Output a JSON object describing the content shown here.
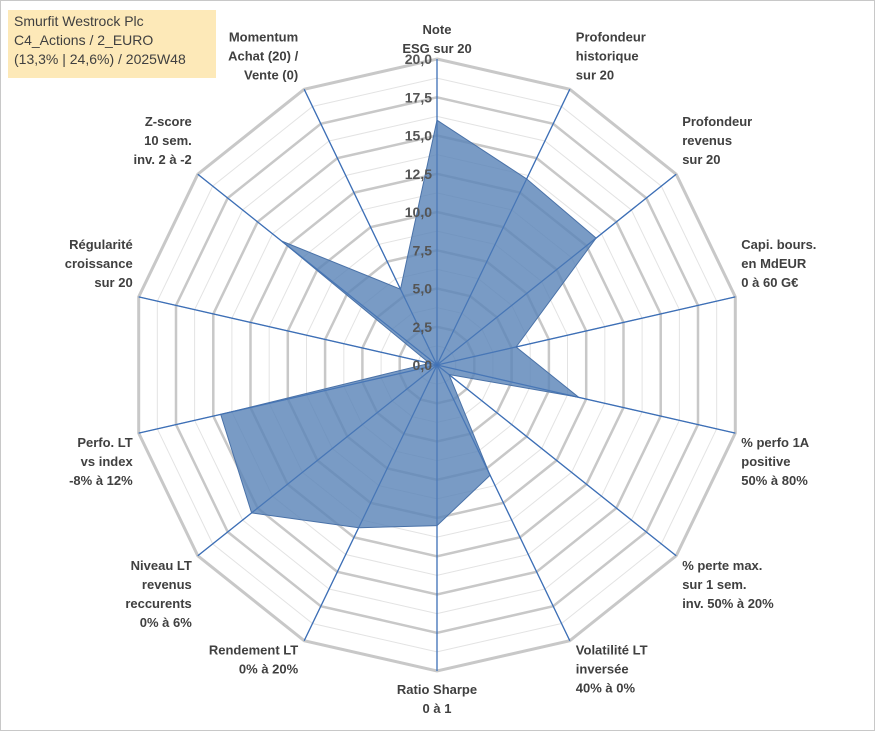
{
  "title_lines": [
    "Smurfit Westrock Plc",
    "C4_Actions / 2_EURO",
    "(13,3% | 24,6%) / 2025W48"
  ],
  "colors": {
    "title_bg": "#fde9b8",
    "grid": "#c8c8c8",
    "grid_minor": "#e3e3e3",
    "spoke": "#3d6fb6",
    "fill": "#5b85b8",
    "stroke": "#4a72a8"
  },
  "chart_data": {
    "type": "radar",
    "r_range": [
      0,
      20
    ],
    "ticks": [
      "0,0",
      "2,5",
      "5,0",
      "7,5",
      "10,0",
      "12,5",
      "15,0",
      "17,5",
      "20,0"
    ],
    "axes": [
      {
        "label": [
          "Note",
          "ESG sur 20"
        ],
        "value": 16.0
      },
      {
        "label": [
          "Profondeur",
          "historique",
          "sur 20"
        ],
        "value": 13.5
      },
      {
        "label": [
          "Profondeur",
          "revenus",
          "sur 20"
        ],
        "value": 13.3
      },
      {
        "label": [
          "Capi. bours.",
          "en MdEUR",
          "0 à 60 G€"
        ],
        "value": 5.3
      },
      {
        "label": [
          "% perfo 1A",
          "positive",
          "50% à 80%"
        ],
        "value": 9.5
      },
      {
        "label": [
          "% perte max.",
          "sur 1 sem.",
          "inv. 50% à 20%"
        ],
        "value": 1.0
      },
      {
        "label": [
          "Volatilité LT",
          "inversée",
          "40% à 0%"
        ],
        "value": 8.0
      },
      {
        "label": [
          "Ratio Sharpe",
          "0 à 1"
        ],
        "value": 10.5
      },
      {
        "label": [
          "Rendement LT",
          "0% à 20%"
        ],
        "value": 11.8
      },
      {
        "label": [
          "Niveau LT",
          "revenus",
          "reccurents",
          "0% à 6%"
        ],
        "value": 15.5
      },
      {
        "label": [
          "Perfo. LT",
          "vs index",
          "-8% à 12%"
        ],
        "value": 14.5
      },
      {
        "label": [
          "Régularité",
          "croissance",
          "sur 20"
        ],
        "value": 0.5
      },
      {
        "label": [
          "Z-score",
          "10 sem.",
          "inv. 2 à -2"
        ],
        "value": 13.0
      },
      {
        "label": [
          "Momentum",
          "Achat (20) /",
          "Vente (0)"
        ],
        "value": 5.5
      }
    ]
  }
}
